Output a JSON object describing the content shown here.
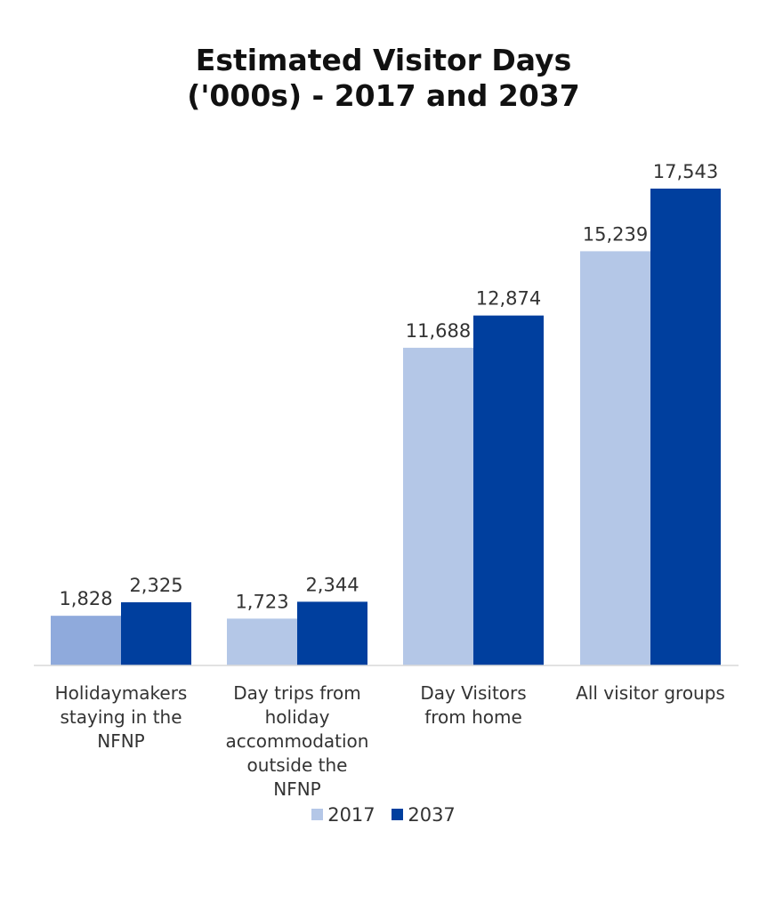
{
  "chart_data": {
    "type": "bar",
    "title": [
      "Estimated Visitor Days",
      "('000s) - 2017 and 2037"
    ],
    "categories": [
      "Holidaymakers staying in the NFNP",
      "Day trips from holiday accommodation outside the NFNP",
      "Day Visitors from home",
      "All visitor groups"
    ],
    "series": [
      {
        "name": "2017",
        "color": "#b4c7e7",
        "values": [
          1828,
          1723,
          11688,
          15239
        ],
        "labels": [
          "1,828",
          "1,723",
          "11,688",
          "15,239"
        ]
      },
      {
        "name": "2037",
        "color": "#003f9e",
        "values": [
          2325,
          2344,
          12874,
          17543
        ],
        "labels": [
          "2,325",
          "2,344",
          "12,874",
          "17,543"
        ]
      }
    ],
    "first_bar_color": "#8faadc",
    "ylim": [
      0,
      17543
    ],
    "grid": false,
    "legend_position": "bottom"
  }
}
